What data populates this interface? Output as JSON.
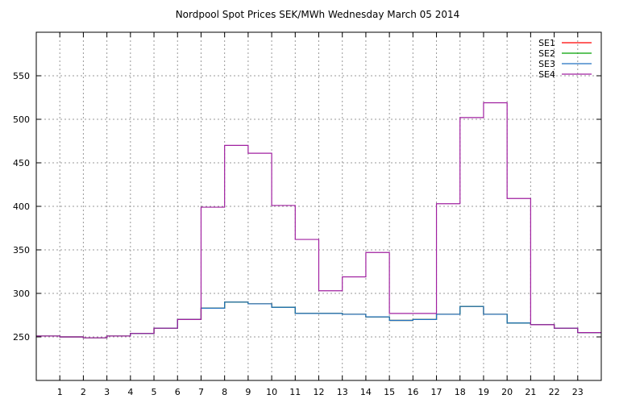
{
  "chart_data": {
    "type": "line",
    "title": "Nordpool Spot Prices SEK/MWh Wednesday March 05 2014",
    "xlabel": "",
    "ylabel": "",
    "xlim": [
      0,
      24
    ],
    "ylim": [
      200,
      600
    ],
    "x_ticks": [
      1,
      2,
      3,
      4,
      5,
      6,
      7,
      8,
      9,
      10,
      11,
      12,
      13,
      14,
      15,
      16,
      17,
      18,
      19,
      20,
      21,
      22,
      23
    ],
    "y_ticks": [
      250,
      300,
      350,
      400,
      450,
      500,
      550
    ],
    "grid": true,
    "legend_position": "top-right",
    "step": true,
    "x": [
      0,
      1,
      2,
      3,
      4,
      5,
      6,
      7,
      8,
      9,
      10,
      11,
      12,
      13,
      14,
      15,
      16,
      17,
      18,
      19,
      20,
      21,
      22,
      23
    ],
    "series": [
      {
        "name": "SE1",
        "color": "#ff0000",
        "values": [
          251,
          250,
          249,
          251,
          254,
          260,
          270,
          283,
          290,
          288,
          284,
          277,
          277,
          276,
          273,
          269,
          270,
          276,
          285,
          276,
          266,
          264,
          260,
          255
        ]
      },
      {
        "name": "SE2",
        "color": "#00a000",
        "values": [
          251,
          250,
          249,
          251,
          254,
          260,
          270,
          283,
          290,
          288,
          284,
          277,
          277,
          276,
          273,
          269,
          270,
          276,
          285,
          276,
          266,
          264,
          260,
          255
        ]
      },
      {
        "name": "SE3",
        "color": "#2070c0",
        "values": [
          251,
          250,
          249,
          251,
          254,
          260,
          270,
          283,
          290,
          288,
          284,
          277,
          277,
          276,
          273,
          269,
          270,
          276,
          285,
          276,
          266,
          264,
          260,
          255
        ]
      },
      {
        "name": "SE4",
        "color": "#a020a0",
        "values": [
          251,
          250,
          249,
          251,
          254,
          260,
          270,
          399,
          470,
          461,
          401,
          362,
          303,
          319,
          347,
          277,
          277,
          403,
          502,
          519,
          409,
          264,
          260,
          255
        ]
      }
    ]
  }
}
